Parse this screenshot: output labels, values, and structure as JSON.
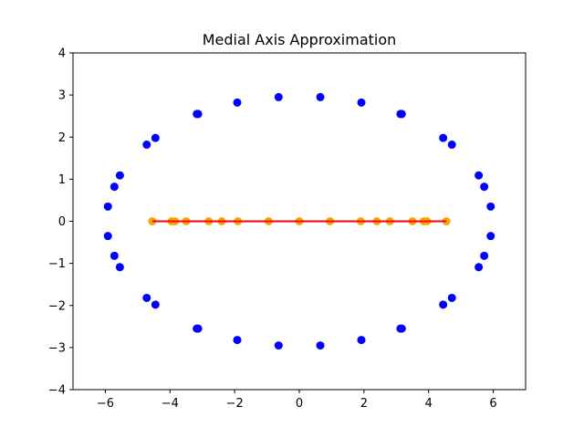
{
  "chart_data": {
    "type": "scatter",
    "title": "Medial Axis Approximation",
    "xlabel": "",
    "ylabel": "",
    "xlim": [
      -7,
      7
    ],
    "ylim": [
      -4,
      4
    ],
    "xticks": [
      -6,
      -4,
      -2,
      0,
      2,
      4,
      6
    ],
    "yticks": [
      -4,
      -3,
      -2,
      -1,
      0,
      1,
      2,
      3,
      4
    ],
    "grid": false,
    "series": [
      {
        "color": "#0000ff",
        "kind": "points",
        "x": [
          5.92,
          5.72,
          5.55,
          4.72,
          4.45,
          3.17,
          1.92,
          0.65,
          -0.64,
          -1.92,
          -3.17,
          -4.45,
          -4.72,
          -5.55,
          -5.72,
          -5.92,
          -5.92,
          -5.72,
          -5.55,
          -4.72,
          -4.45,
          -3.17,
          -1.92,
          -0.64,
          0.65,
          1.92,
          3.17,
          4.45,
          4.72,
          5.55,
          5.72,
          5.92,
          3.13,
          -3.13,
          -3.13,
          3.13
        ],
        "y": [
          0.35,
          0.82,
          1.09,
          1.82,
          1.98,
          2.55,
          2.82,
          2.95,
          2.95,
          2.82,
          2.55,
          1.98,
          1.82,
          1.09,
          0.82,
          0.35,
          -0.35,
          -0.82,
          -1.09,
          -1.82,
          -1.98,
          -2.55,
          -2.82,
          -2.95,
          -2.95,
          -2.82,
          -2.55,
          -1.98,
          -1.82,
          -1.09,
          -0.82,
          -0.35,
          2.55,
          2.55,
          -2.55,
          -2.55
        ]
      },
      {
        "color": "#ffa500",
        "kind": "points",
        "x": [
          -4.55,
          -3.95,
          -3.85,
          -3.5,
          -2.8,
          -2.4,
          -1.9,
          -0.95,
          0.0,
          0.95,
          1.9,
          2.4,
          2.8,
          3.5,
          3.85,
          3.95,
          4.55
        ],
        "y": [
          0,
          0,
          0,
          0,
          0,
          0,
          0,
          0,
          0,
          0,
          0,
          0,
          0,
          0,
          0,
          0,
          0
        ]
      },
      {
        "color": "#ff0000",
        "kind": "line",
        "x": [
          -4.55,
          4.55
        ],
        "y": [
          0,
          0
        ]
      }
    ]
  }
}
